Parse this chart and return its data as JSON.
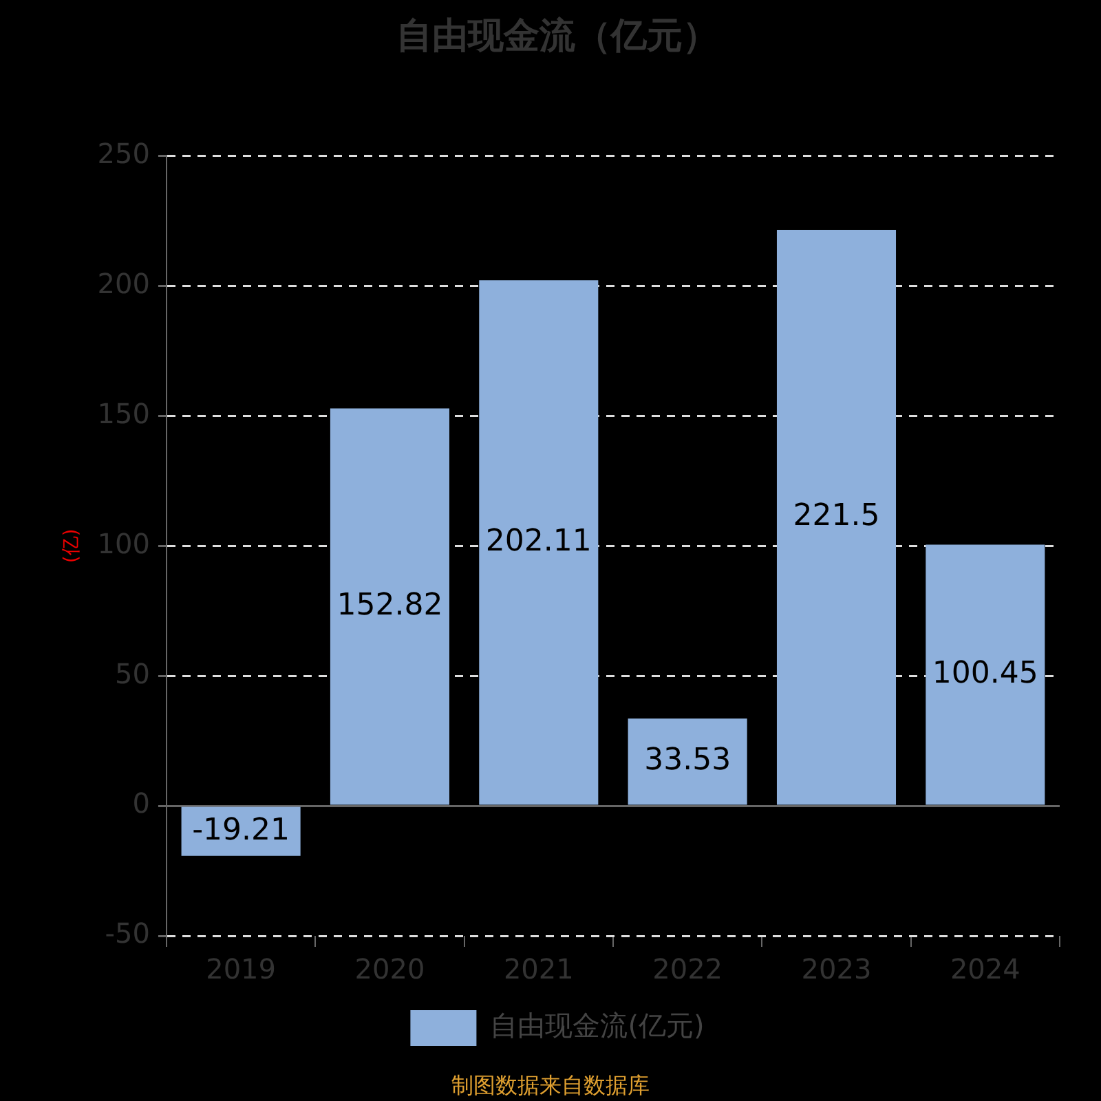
{
  "chart_data": {
    "type": "bar",
    "title": "自由现金流（亿元）",
    "ylabel": "(亿)",
    "categories": [
      "2019",
      "2020",
      "2021",
      "2022",
      "2023",
      "2024"
    ],
    "series": [
      {
        "name": "自由现金流(亿元)",
        "color": "#8eb0dc",
        "values": [
          -19.21,
          152.82,
          202.11,
          33.53,
          221.5,
          100.45
        ]
      }
    ],
    "ylim": [
      -50,
      250
    ],
    "yticks": [
      -50,
      0,
      50,
      100,
      150,
      200,
      250
    ],
    "grid": "y",
    "legend": "bottom",
    "data_labels": true,
    "annotations": [
      "制图数据来自数据库"
    ]
  }
}
